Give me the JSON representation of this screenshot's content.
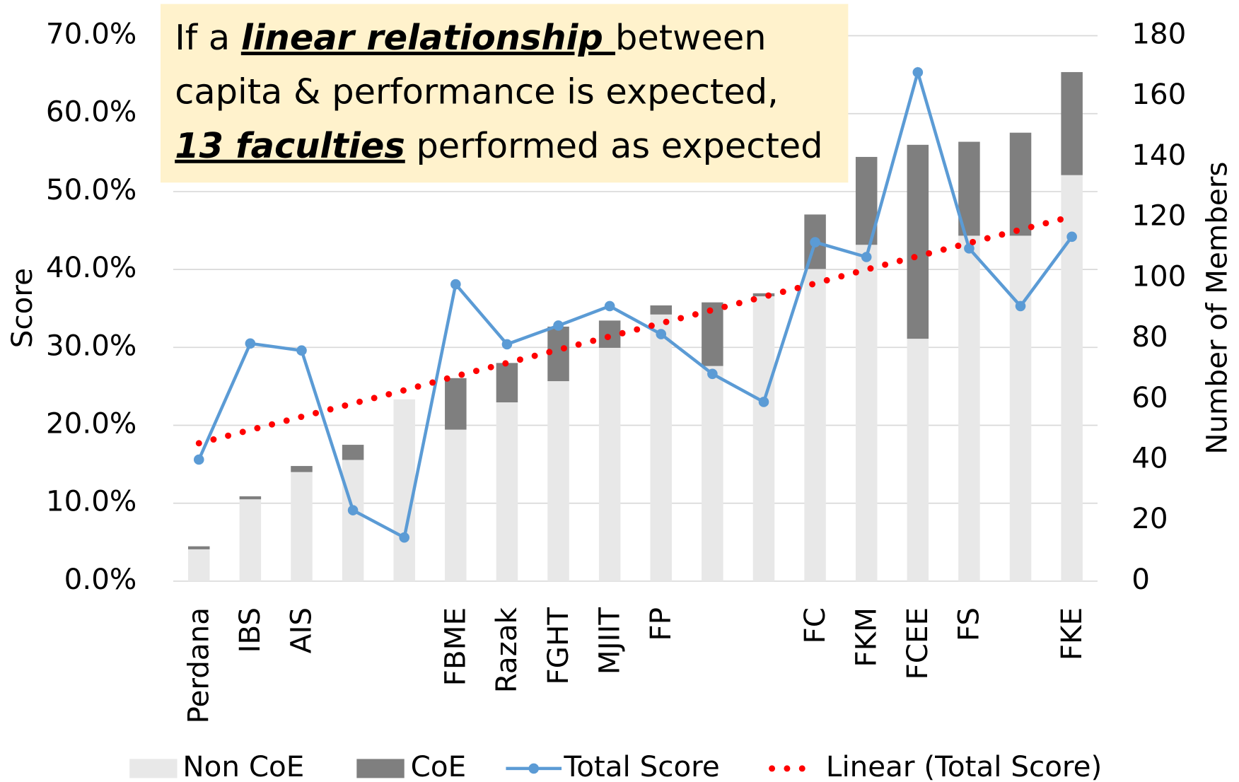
{
  "chart_data": {
    "type": "bar-line",
    "categories": [
      "Perdana",
      "IBS",
      "AIS",
      null,
      null,
      "FBME",
      "Razak",
      "FGHT",
      "MJIIT",
      "FP",
      null,
      null,
      "FC",
      "FKM",
      "FCEE",
      "FS",
      null,
      "FKE"
    ],
    "series": [
      {
        "name": "Non CoE",
        "type": "bar",
        "axis": "y2",
        "color": "#e8e8e8",
        "values": [
          10.5,
          27,
          36,
          40,
          60,
          50,
          59,
          66,
          77,
          88,
          71,
          94,
          103,
          111,
          80,
          114,
          114,
          134
        ]
      },
      {
        "name": "CoE",
        "type": "bar",
        "axis": "y2",
        "color": "#7f7f7f",
        "values": [
          1,
          1,
          2,
          5,
          0,
          17,
          13,
          18,
          9,
          3,
          21,
          1,
          18,
          29,
          64,
          31,
          34,
          34
        ]
      },
      {
        "name": "Total Score",
        "type": "line",
        "color": "#5b9bd5",
        "values": [
          15.6,
          30.5,
          29.6,
          9.1,
          5.6,
          38.1,
          30.4,
          32.8,
          35.3,
          31.7,
          26.6,
          23.0,
          43.5,
          41.6,
          65.3,
          42.7,
          35.3,
          44.2
        ]
      },
      {
        "name": "Linear (Total Score)",
        "type": "trend",
        "color": "#ff0000",
        "values": [
          17.7,
          19.4,
          21.1,
          22.8,
          24.5,
          26.3,
          28.0,
          29.7,
          31.4,
          33.1,
          34.8,
          36.5,
          38.2,
          40.0,
          41.7,
          43.4,
          45.1,
          46.8
        ]
      }
    ],
    "ylabel": "Score",
    "y2label": "Number of Members",
    "ylim": [
      0,
      70
    ],
    "yticks": [
      {
        "value": 0,
        "label": "0.0%"
      },
      {
        "value": 10,
        "label": "10.0%"
      },
      {
        "value": 20,
        "label": "20.0%"
      },
      {
        "value": 30,
        "label": "30.0%"
      },
      {
        "value": 40,
        "label": "40.0%"
      },
      {
        "value": 50,
        "label": "50.0%"
      },
      {
        "value": 60,
        "label": "60.0%"
      },
      {
        "value": 70,
        "label": "70.0%"
      }
    ],
    "y2lim": [
      0,
      180
    ],
    "y2ticks": [
      0,
      20,
      40,
      60,
      80,
      100,
      120,
      140,
      160,
      180
    ],
    "grid": true,
    "legend": "bottom",
    "annotation": {
      "color": "#fff2cc",
      "lines": [
        [
          {
            "text": "If a "
          },
          {
            "text": "linear relationship ",
            "emphasis": true
          },
          {
            "text": "between"
          }
        ],
        [
          {
            "text": "capita & performance is expected,"
          }
        ],
        [
          {
            "text": "13 faculties",
            "emphasis": true
          },
          {
            "text": " performed as expected"
          }
        ]
      ]
    }
  }
}
